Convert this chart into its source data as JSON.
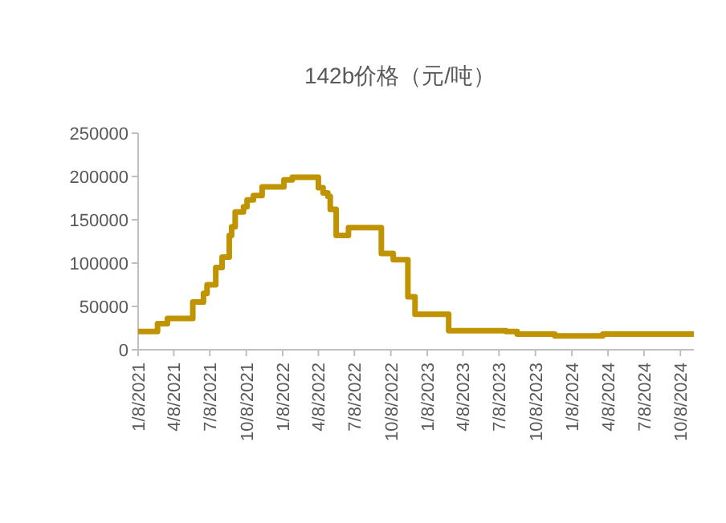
{
  "chart_data": {
    "type": "step",
    "title": "142b价格（元/吨）",
    "ylim": [
      0,
      250000
    ],
    "yticks": [
      0,
      50000,
      100000,
      150000,
      200000,
      250000
    ],
    "xlim": [
      "2021-01-08",
      "2024-11-11"
    ],
    "xticks": [
      {
        "value": "2021-01-08",
        "label": "1/8/2021"
      },
      {
        "value": "2021-04-08",
        "label": "4/8/2021"
      },
      {
        "value": "2021-07-08",
        "label": "7/8/2021"
      },
      {
        "value": "2021-10-08",
        "label": "10/8/2021"
      },
      {
        "value": "2022-01-08",
        "label": "1/8/2022"
      },
      {
        "value": "2022-04-08",
        "label": "4/8/2022"
      },
      {
        "value": "2022-07-08",
        "label": "7/8/2022"
      },
      {
        "value": "2022-10-08",
        "label": "10/8/2022"
      },
      {
        "value": "2023-01-08",
        "label": "1/8/2023"
      },
      {
        "value": "2023-04-08",
        "label": "4/8/2023"
      },
      {
        "value": "2023-07-08",
        "label": "7/8/2023"
      },
      {
        "value": "2023-10-08",
        "label": "10/8/2023"
      },
      {
        "value": "2024-01-08",
        "label": "1/8/2024"
      },
      {
        "value": "2024-04-08",
        "label": "4/8/2024"
      },
      {
        "value": "2024-07-08",
        "label": "7/8/2024"
      },
      {
        "value": "2024-10-08",
        "label": "10/8/2024"
      }
    ],
    "grid": false,
    "series": [
      {
        "color": "#c09400",
        "x": [
          "2021-01-08",
          "2021-02-26",
          "2021-03-23",
          "2021-05-26",
          "2021-06-22",
          "2021-07-01",
          "2021-07-23",
          "2021-08-08",
          "2021-08-26",
          "2021-09-01",
          "2021-09-10",
          "2021-10-01",
          "2021-10-10",
          "2021-10-26",
          "2021-11-17",
          "2022-01-11",
          "2022-02-01",
          "2022-04-08",
          "2022-04-20",
          "2022-05-02",
          "2022-05-08",
          "2022-05-23",
          "2022-06-23",
          "2022-09-14",
          "2022-10-14",
          "2022-11-20",
          "2022-12-08",
          "2023-03-03",
          "2023-07-26",
          "2023-08-23",
          "2023-11-26",
          "2024-03-26",
          "2024-11-11"
        ],
        "values": [
          21000,
          30000,
          36000,
          55000,
          65000,
          75000,
          95000,
          107000,
          132000,
          142000,
          159000,
          165000,
          173000,
          178000,
          188000,
          196000,
          199000,
          187000,
          181000,
          177000,
          162000,
          132000,
          141000,
          111000,
          104000,
          61000,
          41000,
          22000,
          21000,
          18000,
          16000,
          18000,
          18000
        ]
      }
    ]
  }
}
